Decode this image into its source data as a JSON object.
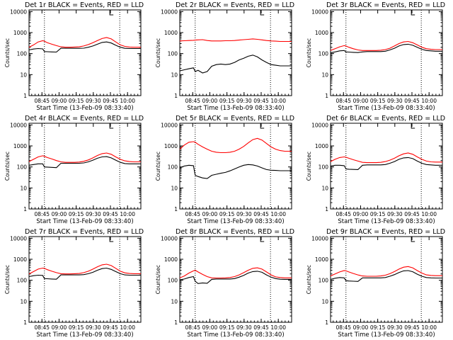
{
  "figure": {
    "xlabel": "Start Time (13-Feb-09 08:33:40)",
    "ylabel": "Counts/sec",
    "x_tick_labels": [
      "08:45",
      "09:00",
      "09:15",
      "09:30",
      "09:45",
      "10:00"
    ],
    "y_tick_labels": [
      "1",
      "10",
      "100",
      "1000",
      "10000"
    ],
    "colors": {
      "events": "#000000",
      "lld": "#ff0000",
      "axes": "#000000",
      "background": "#ffffff"
    },
    "marker_label": "L"
  },
  "chart_data": [
    {
      "type": "line",
      "title": "Det 1r BLACK = Events, RED = LLD",
      "x_unit": "minutes after 08:33:40",
      "xlim": [
        0,
        98
      ],
      "ylim": [
        1,
        12000
      ],
      "y_scale": "log",
      "x_ticks": [
        11.33,
        26.33,
        41.33,
        56.33,
        71.33,
        86.33
      ],
      "vlines": [
        13.5,
        79.5
      ],
      "x": [
        0,
        4,
        8,
        12,
        13.5,
        16,
        20,
        24,
        28,
        32,
        36,
        40,
        44,
        48,
        52,
        56,
        60,
        64,
        68,
        72,
        76,
        80,
        84,
        88,
        92,
        96,
        98
      ],
      "series": [
        {
          "name": "Events",
          "color": "#000000",
          "values": [
            150,
            165,
            175,
            168,
            125,
            123,
            120,
            118,
            180,
            180,
            180,
            178,
            178,
            182,
            200,
            230,
            280,
            340,
            360,
            320,
            250,
            200,
            178,
            175,
            175,
            175,
            175
          ]
        },
        {
          "name": "LLD",
          "color": "#ff0000",
          "values": [
            200,
            260,
            360,
            410,
            390,
            330,
            280,
            240,
            210,
            200,
            200,
            205,
            210,
            230,
            270,
            330,
            420,
            520,
            580,
            500,
            360,
            260,
            220,
            205,
            200,
            200,
            200
          ]
        }
      ]
    },
    {
      "type": "line",
      "title": "Det 2r BLACK = Events, RED = LLD",
      "x_unit": "minutes after 08:33:40",
      "xlim": [
        0,
        98
      ],
      "ylim": [
        1,
        12000
      ],
      "y_scale": "log",
      "x_ticks": [
        11.33,
        26.33,
        41.33,
        56.33,
        71.33,
        86.33
      ],
      "vlines": [
        13.5,
        79.5
      ],
      "x": [
        0,
        4,
        8,
        12,
        13.5,
        16,
        20,
        24,
        28,
        32,
        36,
        40,
        44,
        48,
        52,
        56,
        60,
        64,
        68,
        72,
        76,
        80,
        84,
        88,
        92,
        96,
        98
      ],
      "series": [
        {
          "name": "Events",
          "color": "#000000",
          "values": [
            15,
            17,
            19,
            21,
            14,
            16,
            12,
            14,
            25,
            30,
            32,
            30,
            32,
            38,
            50,
            60,
            75,
            85,
            70,
            50,
            38,
            30,
            28,
            26,
            26,
            26,
            26
          ]
        },
        {
          "name": "LLD",
          "color": "#ff0000",
          "values": [
            400,
            410,
            420,
            430,
            440,
            450,
            460,
            420,
            400,
            400,
            400,
            410,
            410,
            420,
            440,
            460,
            480,
            500,
            480,
            450,
            420,
            400,
            390,
            380,
            380,
            380,
            380
          ]
        }
      ]
    },
    {
      "type": "line",
      "title": "Det 3r BLACK = Events, RED = LLD",
      "x_unit": "minutes after 08:33:40",
      "xlim": [
        0,
        98
      ],
      "ylim": [
        1,
        12000
      ],
      "y_scale": "log",
      "x_ticks": [
        11.33,
        26.33,
        41.33,
        56.33,
        71.33,
        86.33
      ],
      "vlines": [
        13.5,
        79.5
      ],
      "x": [
        0,
        4,
        8,
        12,
        13.5,
        16,
        20,
        24,
        28,
        32,
        36,
        40,
        44,
        48,
        52,
        56,
        60,
        64,
        68,
        72,
        76,
        80,
        84,
        88,
        92,
        96,
        98
      ],
      "series": [
        {
          "name": "Events",
          "color": "#000000",
          "values": [
            110,
            120,
            135,
            140,
            120,
            118,
            115,
            112,
            120,
            125,
            125,
            125,
            125,
            130,
            150,
            180,
            230,
            270,
            280,
            250,
            200,
            160,
            140,
            135,
            130,
            130,
            130
          ]
        },
        {
          "name": "LLD",
          "color": "#ff0000",
          "values": [
            140,
            170,
            210,
            240,
            230,
            200,
            170,
            150,
            140,
            140,
            140,
            140,
            145,
            155,
            180,
            230,
            300,
            360,
            380,
            330,
            260,
            200,
            170,
            160,
            155,
            155,
            155
          ]
        }
      ]
    },
    {
      "type": "line",
      "title": "Det 4r BLACK = Events, RED = LLD",
      "x_unit": "minutes after 08:33:40",
      "xlim": [
        0,
        98
      ],
      "ylim": [
        1,
        12000
      ],
      "y_scale": "log",
      "x_ticks": [
        11.33,
        26.33,
        41.33,
        56.33,
        71.33,
        86.33
      ],
      "vlines": [
        13.5,
        79.5
      ],
      "x": [
        0,
        4,
        8,
        12,
        13.5,
        16,
        20,
        24,
        28,
        32,
        36,
        40,
        44,
        48,
        52,
        56,
        60,
        64,
        68,
        72,
        76,
        80,
        84,
        88,
        92,
        96,
        98
      ],
      "series": [
        {
          "name": "Events",
          "color": "#000000",
          "values": [
            120,
            130,
            140,
            140,
            100,
            98,
            95,
            92,
            150,
            150,
            150,
            150,
            150,
            155,
            175,
            210,
            260,
            300,
            310,
            270,
            210,
            165,
            145,
            140,
            140,
            140,
            140
          ]
        },
        {
          "name": "LLD",
          "color": "#ff0000",
          "values": [
            180,
            230,
            300,
            340,
            320,
            280,
            240,
            200,
            175,
            165,
            165,
            165,
            170,
            185,
            215,
            270,
            350,
            430,
            460,
            400,
            300,
            230,
            195,
            180,
            175,
            175,
            175
          ]
        }
      ]
    },
    {
      "type": "line",
      "title": "Det 5r BLACK = Events, RED = LLD",
      "x_unit": "minutes after 08:33:40",
      "xlim": [
        0,
        98
      ],
      "ylim": [
        1,
        12000
      ],
      "y_scale": "log",
      "x_ticks": [
        11.33,
        26.33,
        41.33,
        56.33,
        71.33,
        86.33
      ],
      "vlines": [
        13.5,
        79.5
      ],
      "x": [
        0,
        4,
        8,
        12,
        13.5,
        16,
        20,
        24,
        28,
        32,
        36,
        40,
        44,
        48,
        52,
        56,
        60,
        64,
        68,
        72,
        76,
        80,
        84,
        88,
        92,
        96,
        98
      ],
      "series": [
        {
          "name": "Events",
          "color": "#000000",
          "values": [
            90,
            110,
            120,
            115,
            40,
            35,
            30,
            28,
            40,
            45,
            50,
            55,
            65,
            80,
            100,
            120,
            130,
            125,
            110,
            90,
            75,
            70,
            68,
            66,
            66,
            66,
            66
          ]
        },
        {
          "name": "LLD",
          "color": "#ff0000",
          "values": [
            700,
            1100,
            1500,
            1600,
            1500,
            1200,
            900,
            700,
            560,
            500,
            480,
            480,
            500,
            560,
            700,
            950,
            1400,
            2000,
            2300,
            1900,
            1300,
            900,
            700,
            600,
            560,
            560,
            560
          ]
        }
      ]
    },
    {
      "type": "line",
      "title": "Det 6r BLACK = Events, RED = LLD",
      "x_unit": "minutes after 08:33:40",
      "xlim": [
        0,
        98
      ],
      "ylim": [
        1,
        12000
      ],
      "y_scale": "log",
      "x_ticks": [
        11.33,
        26.33,
        41.33,
        56.33,
        71.33,
        86.33
      ],
      "vlines": [
        13.5,
        79.5
      ],
      "x": [
        0,
        4,
        8,
        12,
        13.5,
        16,
        20,
        24,
        28,
        32,
        36,
        40,
        44,
        48,
        52,
        56,
        60,
        64,
        68,
        72,
        76,
        80,
        84,
        88,
        92,
        96,
        98
      ],
      "series": [
        {
          "name": "Events",
          "color": "#000000",
          "values": [
            110,
            120,
            120,
            115,
            80,
            78,
            76,
            75,
            120,
            125,
            125,
            125,
            125,
            130,
            150,
            180,
            230,
            270,
            280,
            250,
            190,
            150,
            130,
            125,
            120,
            120,
            120
          ]
        },
        {
          "name": "LLD",
          "color": "#ff0000",
          "values": [
            180,
            230,
            280,
            300,
            290,
            260,
            220,
            190,
            165,
            160,
            160,
            160,
            165,
            180,
            210,
            260,
            340,
            420,
            460,
            400,
            300,
            230,
            190,
            175,
            170,
            170,
            170
          ]
        }
      ]
    },
    {
      "type": "line",
      "title": "Det 7r BLACK = Events, RED = LLD",
      "x_unit": "minutes after 08:33:40",
      "xlim": [
        0,
        98
      ],
      "ylim": [
        1,
        12000
      ],
      "y_scale": "log",
      "x_ticks": [
        11.33,
        26.33,
        41.33,
        56.33,
        71.33,
        86.33
      ],
      "vlines": [
        13.5,
        79.5
      ],
      "x": [
        0,
        4,
        8,
        12,
        13.5,
        16,
        20,
        24,
        28,
        32,
        36,
        40,
        44,
        48,
        52,
        56,
        60,
        64,
        68,
        72,
        76,
        80,
        84,
        88,
        92,
        96,
        98
      ],
      "series": [
        {
          "name": "Events",
          "color": "#000000",
          "values": [
            150,
            165,
            175,
            170,
            120,
            118,
            115,
            112,
            180,
            180,
            180,
            180,
            180,
            185,
            205,
            240,
            300,
            360,
            380,
            330,
            260,
            205,
            180,
            175,
            175,
            175,
            175
          ]
        },
        {
          "name": "LLD",
          "color": "#ff0000",
          "values": [
            200,
            260,
            340,
            380,
            370,
            320,
            270,
            230,
            205,
            200,
            200,
            205,
            210,
            230,
            270,
            340,
            440,
            540,
            580,
            500,
            370,
            270,
            225,
            210,
            205,
            205,
            205
          ]
        }
      ]
    },
    {
      "type": "line",
      "title": "Det 8r BLACK = Events, RED = LLD",
      "x_unit": "minutes after 08:33:40",
      "xlim": [
        0,
        98
      ],
      "ylim": [
        1,
        12000
      ],
      "y_scale": "log",
      "x_ticks": [
        11.33,
        26.33,
        41.33,
        56.33,
        71.33,
        86.33
      ],
      "vlines": [
        13.5,
        79.5
      ],
      "x": [
        0,
        4,
        8,
        12,
        13.5,
        16,
        20,
        24,
        28,
        32,
        36,
        40,
        44,
        48,
        52,
        56,
        60,
        64,
        68,
        72,
        76,
        80,
        84,
        88,
        92,
        96,
        98
      ],
      "series": [
        {
          "name": "Events",
          "color": "#000000",
          "values": [
            105,
            115,
            135,
            150,
            90,
            70,
            75,
            72,
            110,
            115,
            115,
            115,
            115,
            120,
            140,
            170,
            220,
            260,
            270,
            240,
            180,
            140,
            120,
            112,
            110,
            110,
            110
          ]
        },
        {
          "name": "LLD",
          "color": "#ff0000",
          "values": [
            130,
            160,
            220,
            280,
            300,
            250,
            190,
            150,
            130,
            128,
            128,
            130,
            135,
            150,
            180,
            230,
            300,
            370,
            390,
            340,
            250,
            180,
            145,
            135,
            130,
            130,
            130
          ]
        }
      ]
    },
    {
      "type": "line",
      "title": "Det 9r BLACK = Events, RED = LLD",
      "x_unit": "minutes after 08:33:40",
      "xlim": [
        0,
        98
      ],
      "ylim": [
        1,
        12000
      ],
      "y_scale": "log",
      "x_ticks": [
        11.33,
        26.33,
        41.33,
        56.33,
        71.33,
        86.33
      ],
      "vlines": [
        13.5,
        79.5
      ],
      "x": [
        0,
        4,
        8,
        12,
        13.5,
        16,
        20,
        24,
        28,
        32,
        36,
        40,
        44,
        48,
        52,
        56,
        60,
        64,
        68,
        72,
        76,
        80,
        84,
        88,
        92,
        96,
        98
      ],
      "series": [
        {
          "name": "Events",
          "color": "#000000",
          "values": [
            110,
            125,
            135,
            130,
            95,
            92,
            90,
            88,
            130,
            130,
            130,
            130,
            130,
            135,
            155,
            185,
            235,
            280,
            290,
            255,
            195,
            155,
            135,
            130,
            128,
            128,
            128
          ]
        },
        {
          "name": "LLD",
          "color": "#ff0000",
          "values": [
            160,
            200,
            250,
            290,
            280,
            250,
            210,
            180,
            160,
            155,
            155,
            155,
            160,
            175,
            205,
            260,
            340,
            420,
            450,
            390,
            290,
            220,
            180,
            170,
            165,
            165,
            165
          ]
        }
      ]
    }
  ]
}
